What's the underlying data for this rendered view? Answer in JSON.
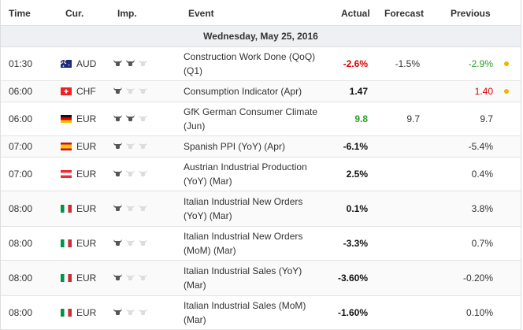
{
  "headers": {
    "time": "Time",
    "cur": "Cur.",
    "imp": "Imp.",
    "event": "Event",
    "actual": "Actual",
    "forecast": "Forecast",
    "previous": "Previous"
  },
  "date": "Wednesday, May 25, 2016",
  "colors": {
    "orange_dot": "#f0b400",
    "red": "#d00000",
    "green": "#2a9d2a"
  },
  "rows": [
    {
      "time": "01:30",
      "cur": "AUD",
      "flag": "australia-flag-icon",
      "imp": 2,
      "event_l1": "Construction Work Done (QoQ)",
      "event_l2": "(Q1)",
      "actual": "-2.6%",
      "actual_color": "red",
      "forecast": "-1.5%",
      "previous": "-2.9%",
      "previous_color": "green",
      "dot": true,
      "h": 42
    },
    {
      "time": "06:00",
      "cur": "CHF",
      "flag": "switzerland-flag-icon",
      "imp": 1,
      "event_l1": "Consumption Indicator (Apr)",
      "event_l2": "",
      "actual": "1.47",
      "actual_color": "black",
      "forecast": "",
      "previous": "1.40",
      "previous_color": "red",
      "dot": true,
      "h": 26
    },
    {
      "time": "06:00",
      "cur": "EUR",
      "flag": "germany-flag-icon",
      "imp": 2,
      "event_l1": "GfK German Consumer Climate",
      "event_l2": "(Jun)",
      "actual": "9.8",
      "actual_color": "green",
      "forecast": "9.7",
      "previous": "9.7",
      "previous_color": "",
      "dot": false,
      "h": 42
    },
    {
      "time": "07:00",
      "cur": "EUR",
      "flag": "spain-flag-icon",
      "imp": 1,
      "event_l1": "Spanish PPI (YoY) (Apr)",
      "event_l2": "",
      "actual": "-6.1%",
      "actual_color": "black",
      "forecast": "",
      "previous": "-5.4%",
      "previous_color": "",
      "dot": false,
      "h": 26
    },
    {
      "time": "07:00",
      "cur": "EUR",
      "flag": "austria-flag-icon",
      "imp": 1,
      "event_l1": "Austrian Industrial Production",
      "event_l2": "(YoY) (Mar)",
      "actual": "2.5%",
      "actual_color": "black",
      "forecast": "",
      "previous": "0.4%",
      "previous_color": "",
      "dot": false,
      "h": 42
    },
    {
      "time": "08:00",
      "cur": "EUR",
      "flag": "italy-flag-icon",
      "imp": 1,
      "event_l1": "Italian Industrial New Orders",
      "event_l2": "(YoY) (Mar)",
      "actual": "0.1%",
      "actual_color": "black",
      "forecast": "",
      "previous": "3.8%",
      "previous_color": "",
      "dot": false,
      "h": 44
    },
    {
      "time": "08:00",
      "cur": "EUR",
      "flag": "italy-flag-icon",
      "imp": 1,
      "event_l1": "Italian Industrial New Orders",
      "event_l2": "(MoM) (Mar)",
      "actual": "-3.3%",
      "actual_color": "black",
      "forecast": "",
      "previous": "0.7%",
      "previous_color": "",
      "dot": false,
      "h": 42
    },
    {
      "time": "08:00",
      "cur": "EUR",
      "flag": "italy-flag-icon",
      "imp": 1,
      "event_l1": "Italian Industrial Sales (YoY)",
      "event_l2": "(Mar)",
      "actual": "-3.60%",
      "actual_color": "black",
      "forecast": "",
      "previous": "-0.20%",
      "previous_color": "",
      "dot": false,
      "h": 44
    },
    {
      "time": "08:00",
      "cur": "EUR",
      "flag": "italy-flag-icon",
      "imp": 1,
      "event_l1": "Italian Industrial Sales (MoM)",
      "event_l2": "(Mar)",
      "actual": "-1.60%",
      "actual_color": "black",
      "forecast": "",
      "previous": "0.10%",
      "previous_color": "",
      "dot": false,
      "h": 42
    }
  ]
}
